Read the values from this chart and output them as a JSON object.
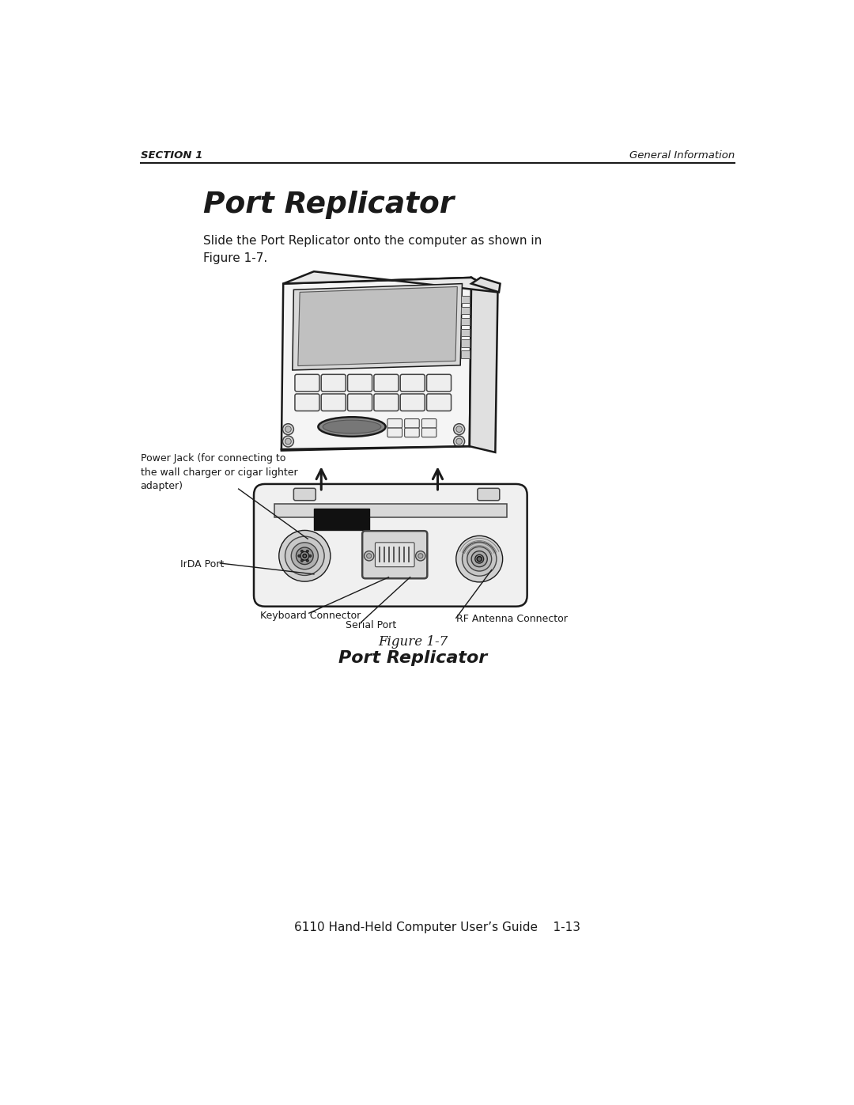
{
  "bg_color": "#ffffff",
  "header_left": "SECTION 1",
  "header_right": "General Information",
  "title": "Port Replicator",
  "body_text": "Slide the Port Replicator onto the computer as shown in\nFigure 1-7.",
  "figure_caption_line1": "Figure 1-7",
  "figure_caption_line2": "Port Replicator",
  "footer_text": "6110 Hand-Held Computer User’s Guide    1-13",
  "label_power_jack": "Power Jack (for connecting to\nthe wall charger or cigar lighter\nadapter)",
  "label_irda": "IrDA Port",
  "label_keyboard": "Keyboard Connector",
  "label_serial": "Serial Port",
  "label_rf": "RF Antenna Connector",
  "lw_main": 1.8,
  "lw_detail": 1.1,
  "ec_main": "#1a1a1a",
  "ec_detail": "#444444",
  "fc_body": "#f5f5f5",
  "fc_screen": "#e8e8e8",
  "fc_dark": "#111111",
  "fc_btn": "#eeeeee",
  "fc_mid": "#d5d5d5"
}
